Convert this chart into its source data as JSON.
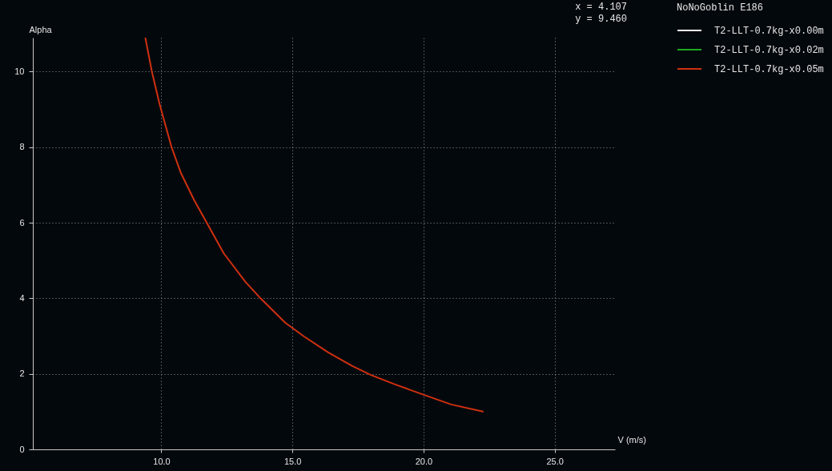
{
  "chart_data": {
    "type": "line",
    "xlabel": "V (m/s)",
    "ylabel": "Alpha",
    "legend_title": "NoNoGoblin E186",
    "annotations": [
      "x = 4.107",
      "y = 9.460"
    ],
    "x": [
      9.39,
      9.64,
      9.93,
      10.39,
      10.75,
      11.25,
      11.74,
      12.38,
      13.2,
      13.81,
      14.73,
      15.44,
      16.36,
      17.28,
      17.99,
      18.91,
      19.99,
      21.05,
      22.26
    ],
    "series": [
      {
        "name": "T2-LLT-0.7kg-x0.00m",
        "color": "#ffffff",
        "values": [
          null,
          null,
          null,
          null,
          null,
          null,
          null,
          null,
          null,
          null,
          null,
          null,
          null,
          null,
          null,
          null,
          null,
          null,
          null
        ]
      },
      {
        "name": "T2-LLT-0.7kg-x0.02m",
        "color": "#1faa1f",
        "values": [
          null,
          null,
          null,
          null,
          null,
          null,
          null,
          null,
          null,
          null,
          null,
          null,
          null,
          null,
          null,
          null,
          null,
          null,
          null
        ]
      },
      {
        "name": "T2-LLT-0.7kg-x0.05m",
        "color": "#d0300f",
        "values": [
          10.9,
          10.0,
          9.15,
          8.0,
          7.31,
          6.6,
          5.99,
          5.19,
          4.44,
          3.98,
          3.35,
          2.99,
          2.57,
          2.21,
          1.97,
          1.72,
          1.45,
          1.19,
          1.0
        ]
      }
    ],
    "xlim": [
      5.1,
      27.3
    ],
    "ylim": [
      0,
      10.9
    ],
    "xticks": [
      {
        "value": 10,
        "label": "10.0"
      },
      {
        "value": 15,
        "label": "15.0"
      },
      {
        "value": 20,
        "label": "20.0"
      },
      {
        "value": 25,
        "label": "25.0"
      }
    ],
    "yticks": [
      0,
      2,
      4,
      6,
      8,
      10
    ],
    "grid": true,
    "legend": "top right",
    "line_style": "solid"
  }
}
